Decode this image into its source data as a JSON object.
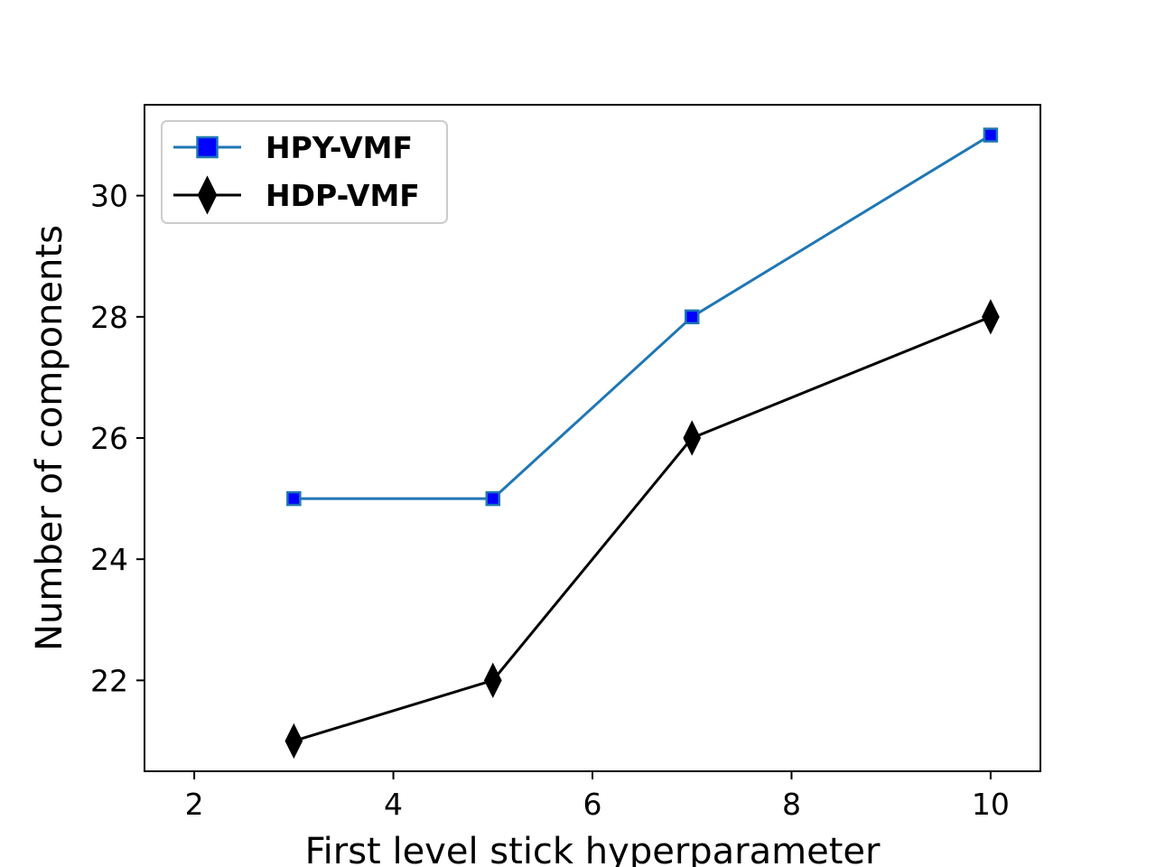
{
  "chart_data": {
    "type": "line",
    "title": "",
    "xlabel": "First level stick hyperparameter",
    "ylabel": "Number of components",
    "xlim": [
      1.5,
      10.5
    ],
    "ylim": [
      20.5,
      31.5
    ],
    "xticks": [
      2,
      4,
      6,
      8,
      10
    ],
    "yticks": [
      22,
      24,
      26,
      28,
      30
    ],
    "grid": false,
    "legend_position": "upper left",
    "series": [
      {
        "name": "HPY-VMF",
        "x": [
          3,
          5,
          7,
          10
        ],
        "y": [
          25,
          25,
          28,
          31
        ],
        "line_color": "#1f77b4",
        "marker": "square",
        "marker_fill": "#0000ff"
      },
      {
        "name": "HDP-VMF",
        "x": [
          3,
          5,
          7,
          10
        ],
        "y": [
          21,
          22,
          26,
          28
        ],
        "line_color": "#000000",
        "marker": "thin-diamond",
        "marker_fill": "#000000"
      }
    ]
  }
}
